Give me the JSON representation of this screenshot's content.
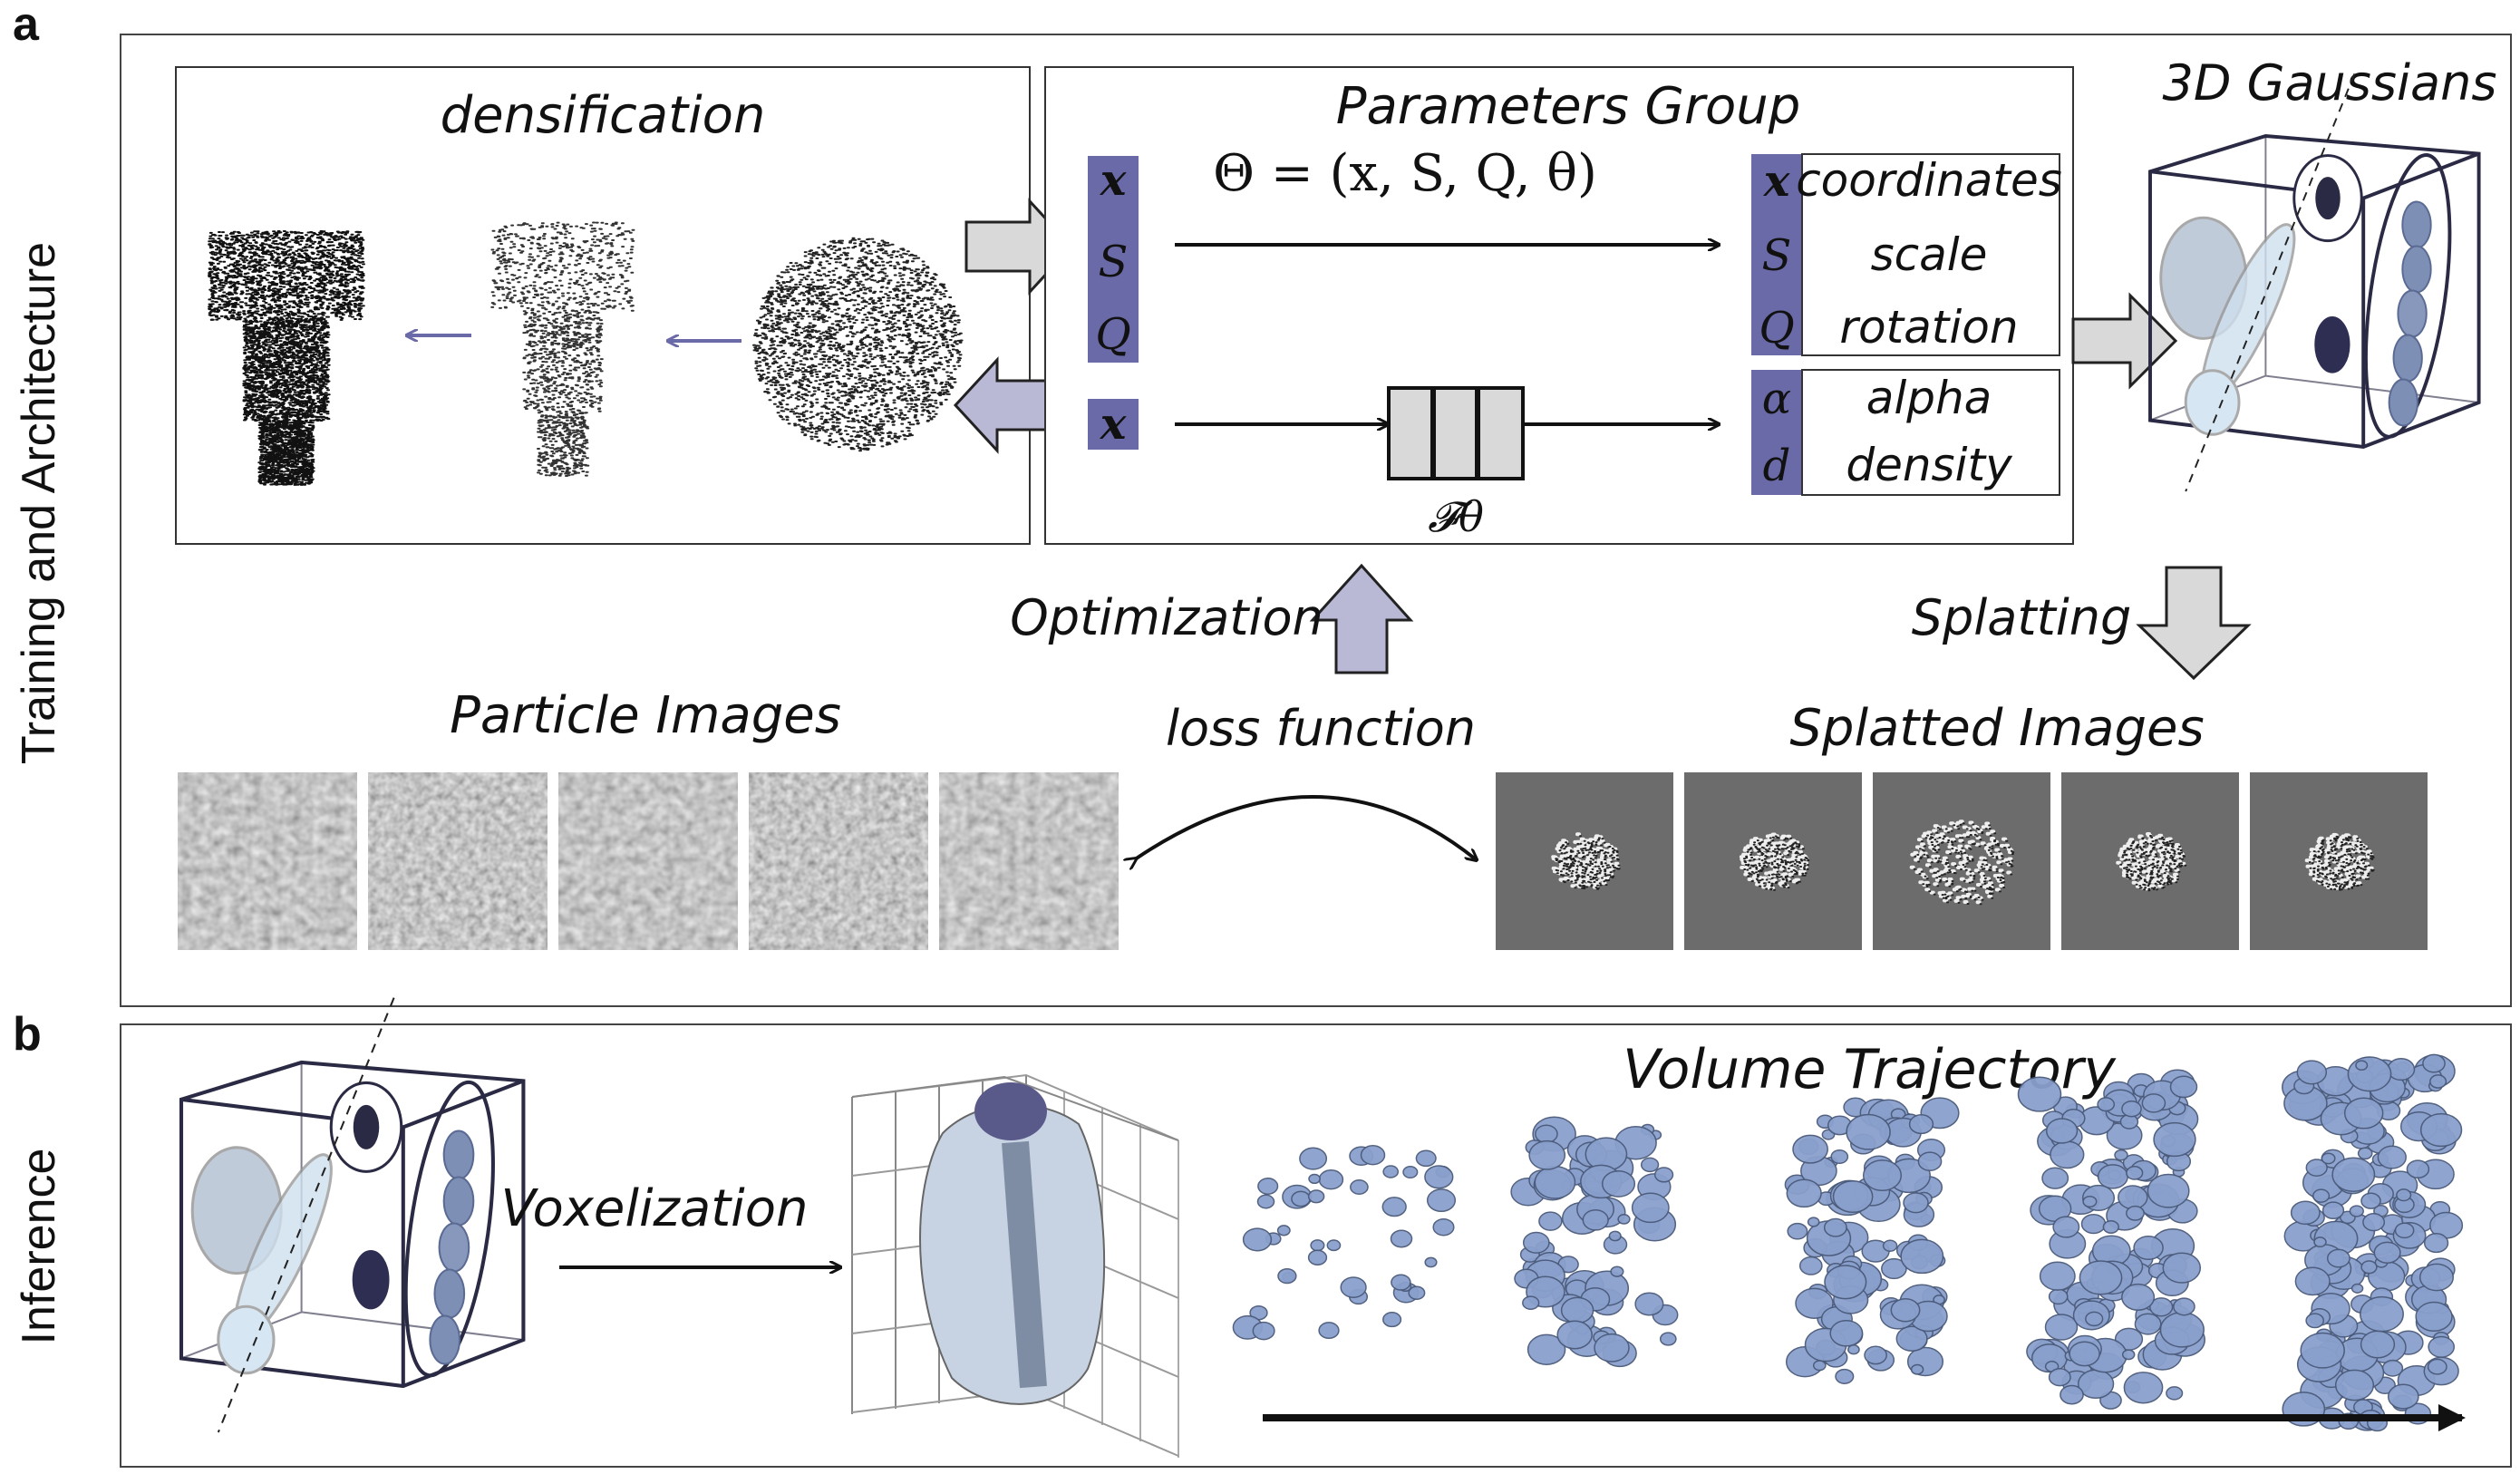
{
  "panels": {
    "a": {
      "letter": "a",
      "side_label": "Training and Architecture"
    },
    "b": {
      "letter": "b",
      "side_label": "Inference"
    }
  },
  "densification": {
    "title": "densification"
  },
  "parameters_group": {
    "title": "Parameters Group",
    "equation": "Θ = (x, S, Q, θ)",
    "input_symbols": [
      "x",
      "S",
      "Q"
    ],
    "net_input_symbol": "x",
    "network_label": "𝓕θ",
    "outputs": [
      {
        "symbol": "x",
        "label": "coordinates"
      },
      {
        "symbol": "S",
        "label": "scale"
      },
      {
        "symbol": "Q",
        "label": "rotation"
      },
      {
        "symbol": "α",
        "label": "alpha"
      },
      {
        "symbol": "d",
        "label": "density"
      }
    ]
  },
  "gaussians": {
    "title": "3D Gaussians"
  },
  "flow_labels": {
    "optimization": "Optimization",
    "splatting": "Splatting",
    "loss_function": "loss function",
    "voxelization": "Voxelization"
  },
  "particle_images": {
    "title": "Particle Images",
    "count": 5
  },
  "splatted_images": {
    "title": "Splatted Images",
    "count": 5
  },
  "volume_trajectory": {
    "title": "Volume Trajectory",
    "count": 5
  },
  "colors": {
    "accent_purple": "#6a6aa8",
    "light_purple": "#b9b9d6",
    "arrow_gray": "#d9d9d9",
    "volume_blue": "#8aa0cc",
    "particle_gray": "#9a9a9a",
    "splat_gray": "#6c6c6c"
  }
}
